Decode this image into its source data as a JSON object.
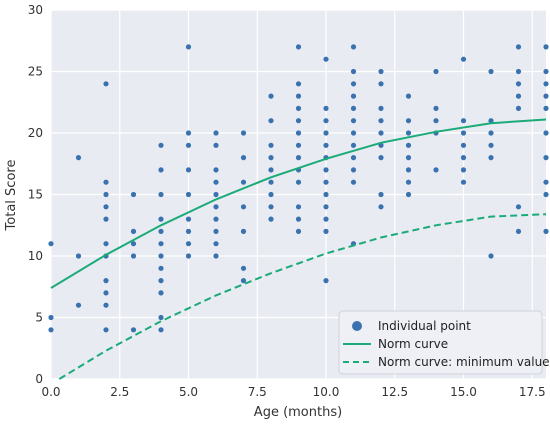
{
  "chart_data": {
    "type": "scatter",
    "xlabel": "Age (months)",
    "ylabel": "Total Score",
    "xlim": [
      0,
      18
    ],
    "ylim": [
      0,
      30
    ],
    "xticks": [
      "0.0",
      "2.5",
      "5.0",
      "7.5",
      "10.0",
      "12.5",
      "15.0",
      "17.5"
    ],
    "xtick_values": [
      0,
      2.5,
      5,
      7.5,
      10,
      12.5,
      15,
      17.5
    ],
    "yticks": [
      "0",
      "5",
      "10",
      "15",
      "20",
      "25",
      "30"
    ],
    "ytick_values": [
      0,
      5,
      10,
      15,
      20,
      25,
      30
    ],
    "grid": true,
    "background_color": "#e9ebf3",
    "legend_position": "lower-right",
    "legend": {
      "points": "Individual point",
      "norm": "Norm curve",
      "min": "Norm curve: minimum value"
    },
    "colors": {
      "points": "#3a72b0",
      "norm": "#1aab78",
      "min": "#1aab78"
    },
    "points": [
      [
        0,
        11
      ],
      [
        0,
        5
      ],
      [
        0,
        4
      ],
      [
        1,
        18
      ],
      [
        1,
        10
      ],
      [
        1,
        6
      ],
      [
        2,
        24
      ],
      [
        2,
        16
      ],
      [
        2,
        15
      ],
      [
        2,
        14
      ],
      [
        2,
        13
      ],
      [
        2,
        11
      ],
      [
        2,
        10
      ],
      [
        2,
        8
      ],
      [
        2,
        7
      ],
      [
        2,
        6
      ],
      [
        2,
        4
      ],
      [
        3,
        15
      ],
      [
        3,
        12
      ],
      [
        3,
        11
      ],
      [
        3,
        10
      ],
      [
        3,
        4
      ],
      [
        4,
        19
      ],
      [
        4,
        17
      ],
      [
        4,
        15
      ],
      [
        4,
        13
      ],
      [
        4,
        12
      ],
      [
        4,
        11
      ],
      [
        4,
        10
      ],
      [
        4,
        9
      ],
      [
        4,
        8
      ],
      [
        4,
        7
      ],
      [
        4,
        5
      ],
      [
        4,
        4
      ],
      [
        5,
        27
      ],
      [
        5,
        20
      ],
      [
        5,
        19
      ],
      [
        5,
        17
      ],
      [
        5,
        15
      ],
      [
        5,
        13
      ],
      [
        5,
        12
      ],
      [
        5,
        11
      ],
      [
        5,
        10
      ],
      [
        6,
        20
      ],
      [
        6,
        19
      ],
      [
        6,
        17
      ],
      [
        6,
        16
      ],
      [
        6,
        15
      ],
      [
        6,
        14
      ],
      [
        6,
        13
      ],
      [
        6,
        12
      ],
      [
        6,
        11
      ],
      [
        6,
        10
      ],
      [
        7,
        20
      ],
      [
        7,
        18
      ],
      [
        7,
        16
      ],
      [
        7,
        14
      ],
      [
        7,
        12
      ],
      [
        7,
        9
      ],
      [
        7,
        8
      ],
      [
        8,
        23
      ],
      [
        8,
        21
      ],
      [
        8,
        19
      ],
      [
        8,
        18
      ],
      [
        8,
        17
      ],
      [
        8,
        16
      ],
      [
        8,
        15
      ],
      [
        8,
        14
      ],
      [
        8,
        13
      ],
      [
        9,
        27
      ],
      [
        9,
        24
      ],
      [
        9,
        23
      ],
      [
        9,
        22
      ],
      [
        9,
        21
      ],
      [
        9,
        20
      ],
      [
        9,
        19
      ],
      [
        9,
        18
      ],
      [
        9,
        17
      ],
      [
        9,
        16
      ],
      [
        9,
        14
      ],
      [
        9,
        13
      ],
      [
        9,
        12
      ],
      [
        10,
        26
      ],
      [
        10,
        22
      ],
      [
        10,
        21
      ],
      [
        10,
        20
      ],
      [
        10,
        19
      ],
      [
        10,
        18
      ],
      [
        10,
        17
      ],
      [
        10,
        16
      ],
      [
        10,
        15
      ],
      [
        10,
        14
      ],
      [
        10,
        13
      ],
      [
        10,
        12
      ],
      [
        10,
        8
      ],
      [
        11,
        27
      ],
      [
        11,
        25
      ],
      [
        11,
        24
      ],
      [
        11,
        23
      ],
      [
        11,
        22
      ],
      [
        11,
        21
      ],
      [
        11,
        20
      ],
      [
        11,
        19
      ],
      [
        11,
        18
      ],
      [
        11,
        17
      ],
      [
        11,
        16
      ],
      [
        11,
        11
      ],
      [
        12,
        25
      ],
      [
        12,
        24
      ],
      [
        12,
        22
      ],
      [
        12,
        21
      ],
      [
        12,
        20
      ],
      [
        12,
        19
      ],
      [
        12,
        18
      ],
      [
        12,
        15
      ],
      [
        12,
        14
      ],
      [
        13,
        23
      ],
      [
        13,
        21
      ],
      [
        13,
        20
      ],
      [
        13,
        19
      ],
      [
        13,
        18
      ],
      [
        13,
        17
      ],
      [
        13,
        16
      ],
      [
        13,
        15
      ],
      [
        14,
        25
      ],
      [
        14,
        22
      ],
      [
        14,
        21
      ],
      [
        14,
        20
      ],
      [
        14,
        17
      ],
      [
        15,
        26
      ],
      [
        15,
        21
      ],
      [
        15,
        20
      ],
      [
        15,
        19
      ],
      [
        15,
        18
      ],
      [
        15,
        17
      ],
      [
        15,
        16
      ],
      [
        16,
        25
      ],
      [
        16,
        21
      ],
      [
        16,
        20
      ],
      [
        16,
        19
      ],
      [
        16,
        18
      ],
      [
        16,
        10
      ],
      [
        17,
        27
      ],
      [
        17,
        25
      ],
      [
        17,
        24
      ],
      [
        17,
        23
      ],
      [
        17,
        22
      ],
      [
        17,
        14
      ],
      [
        17,
        12
      ],
      [
        18,
        27
      ],
      [
        18,
        25
      ],
      [
        18,
        24
      ],
      [
        18,
        23
      ],
      [
        18,
        22
      ],
      [
        18,
        20
      ],
      [
        18,
        18
      ],
      [
        18,
        16
      ],
      [
        18,
        15
      ],
      [
        18,
        12
      ]
    ],
    "norm_curve": [
      [
        0,
        7.4
      ],
      [
        2,
        10.1
      ],
      [
        4,
        12.5
      ],
      [
        6,
        14.6
      ],
      [
        8,
        16.4
      ],
      [
        10,
        17.9
      ],
      [
        12,
        19.2
      ],
      [
        14,
        20.1
      ],
      [
        16,
        20.8
      ],
      [
        18,
        21.1
      ]
    ],
    "norm_min_curve": [
      [
        0.3,
        0
      ],
      [
        2,
        2.3
      ],
      [
        4,
        4.7
      ],
      [
        6,
        6.8
      ],
      [
        8,
        8.6
      ],
      [
        10,
        10.2
      ],
      [
        12,
        11.5
      ],
      [
        14,
        12.5
      ],
      [
        16,
        13.2
      ],
      [
        18,
        13.4
      ]
    ]
  }
}
